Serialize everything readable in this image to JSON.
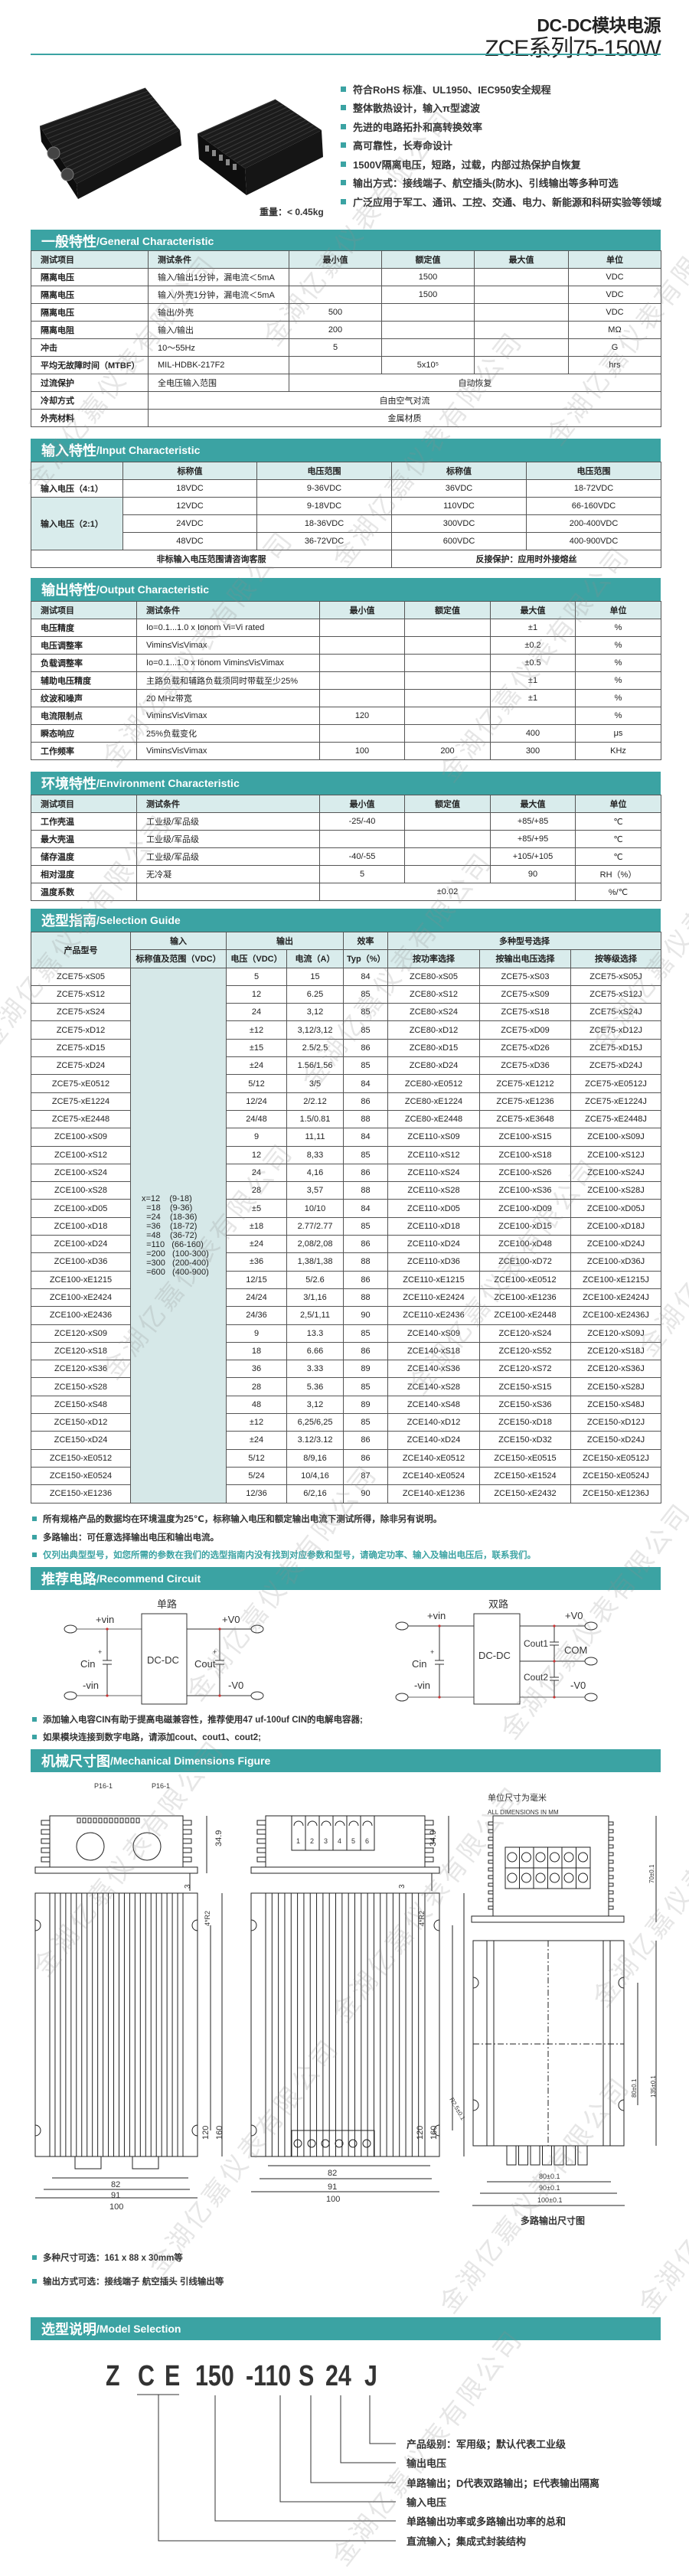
{
  "header": {
    "title_line1": "DC-DC模块电源",
    "title_line2": "ZCE系列75-150W"
  },
  "features": [
    "符合RoHS 标准、UL1950、IEC950安全规程",
    "整体散热设计，输入π型滤波",
    "先进的电路拓扑和高转换效率",
    "高可靠性，长寿命设计",
    "1500V隔离电压，短路，过载，内部过热保护自恢复",
    "输出方式：接线端子、航空插头(防水)、引线输出等多种可选",
    "广泛应用于军工、通讯、工控、交通、电力、新能源和科研实验等领域"
  ],
  "weight": "重量：< 0.45kg",
  "general": {
    "title_cn": "一般特性",
    "title_en": "/General Characteristic",
    "headers": [
      "测试项目",
      "测试条件",
      "最小值",
      "额定值",
      "最大值",
      "单位"
    ],
    "rows": [
      [
        "隔离电压",
        "输入/输出1分钟，漏电流＜5mA",
        "",
        "1500",
        "",
        "VDC"
      ],
      [
        "隔离电压",
        "输入/外壳1分钟，漏电流＜5mA",
        "",
        "1500",
        "",
        "VDC"
      ],
      [
        "隔离电压",
        "输出/外壳",
        "500",
        "",
        "",
        "VDC"
      ],
      [
        "隔离电阻",
        "输入/输出",
        "200",
        "",
        "",
        "MΩ"
      ],
      [
        "冲击",
        "10～55Hz",
        "5",
        "",
        "",
        "G"
      ],
      [
        "平均无故障时间（MTBF）",
        "MIL-HDBK-217F2",
        "",
        "5x10⁵",
        "",
        "hrs"
      ],
      [
        "过流保护",
        "全电压输入范围",
        "自动恢复"
      ],
      [
        "冷却方式",
        "自由空气对流"
      ],
      [
        "外壳材料",
        "金属材质"
      ]
    ]
  },
  "input": {
    "title_cn": "输入特性",
    "title_en": "/Input Characteristic",
    "headers": [
      "",
      "标称值",
      "电压范围",
      "标称值",
      "电压范围"
    ],
    "rows": [
      [
        "输入电压（4:1）",
        "18VDC",
        "9-36VDC",
        "36VDC",
        "18-72VDC"
      ],
      [
        "输入电压（2:1）",
        "12VDC",
        "9-18VDC",
        "110VDC",
        "66-160VDC"
      ],
      [
        "24VDC",
        "18-36VDC",
        "300VDC",
        "200-400VDC"
      ],
      [
        "48VDC",
        "36-72VDC",
        "600VDC",
        "400-900VDC"
      ],
      [
        "非标输入电压范围请咨询客服",
        "反接保护：应用时外接熔丝"
      ]
    ]
  },
  "output": {
    "title_cn": "输出特性",
    "title_en": "/Output Characteristic",
    "headers": [
      "测试项目",
      "测试条件",
      "最小值",
      "额定值",
      "最大值",
      "单位"
    ],
    "rows": [
      [
        "电压精度",
        "Io=0.1...1.0 x Ionom Vi=Vi rated",
        "",
        "",
        "±1",
        "%"
      ],
      [
        "电压调整率",
        "Vimin≤Vi≤Vimax",
        "",
        "",
        "±0.2",
        "%"
      ],
      [
        "负载调整率",
        "Io=0.1...1.0 x Ionom Vimin≤Vi≤Vimax",
        "",
        "",
        "±0.5",
        "%"
      ],
      [
        "辅助电压精度",
        "主路负载和辅路负载须同时带载至少25%",
        "",
        "",
        "±1",
        "%"
      ],
      [
        "纹波和噪声",
        "20 MHz带宽",
        "",
        "",
        "±1",
        "%"
      ],
      [
        "电流限制点",
        "Vimin≤Vi≤Vimax",
        "120",
        "",
        "",
        "%"
      ],
      [
        "瞬态响应",
        "25%负载变化",
        "",
        "",
        "400",
        "μs"
      ],
      [
        "工作频率",
        "Vimin≤Vi≤Vimax",
        "100",
        "200",
        "300",
        "KHz"
      ]
    ]
  },
  "environment": {
    "title_cn": "环境特性",
    "title_en": "/Environment Characteristic",
    "headers": [
      "测试项目",
      "测试条件",
      "最小值",
      "额定值",
      "最大值",
      "单位"
    ],
    "rows": [
      [
        "工作壳温",
        "工业级/军品级",
        "-25/-40",
        "",
        "+85/+85",
        "℃"
      ],
      [
        "最大壳温",
        "工业级/军品级",
        "",
        "",
        "+85/+95",
        "℃"
      ],
      [
        "储存温度",
        "工业级/军品级",
        "-40/-55",
        "",
        "+105/+105",
        "℃"
      ],
      [
        "相对湿度",
        "无冷凝",
        "5",
        "",
        "90",
        "RH（%）"
      ],
      [
        "温度系数",
        "",
        "±0.02",
        "%/℃"
      ]
    ]
  },
  "selection": {
    "title_cn": "选型指南",
    "title_en": "/Selection Guide",
    "header_top": [
      "产品型号",
      "输入",
      "输出",
      "效率",
      "多种型号选择"
    ],
    "header_sub": [
      "标称值及范围（VDC）",
      "电压（VDC）",
      "电流（A）",
      "Typ（%）",
      "按功率选择",
      "按输出电压选择",
      "按等级选择"
    ],
    "input_range": "x=12    (9-18)\n  =18    (9-36)\n  =24    (18-36)\n  =36    (18-72)\n  =48    (36-72)\n  =110   (66-160)\n  =200   (100-300)\n  =300   (200-400)\n  =600   (400-900)",
    "rows": [
      [
        "ZCE75-xS05",
        "5",
        "15",
        "84",
        "ZCE80-xS05",
        "ZCE75-xS03",
        "ZCE75-xS05J"
      ],
      [
        "ZCE75-xS12",
        "12",
        "6.25",
        "85",
        "ZCE80-xS12",
        "ZCE75-xS09",
        "ZCE75-xS12J"
      ],
      [
        "ZCE75-xS24",
        "24",
        "3,12",
        "85",
        "ZCE80-xS24",
        "ZCE75-xS18",
        "ZCE75-xS24J"
      ],
      [
        "ZCE75-xD12",
        "±12",
        "3,12/3,12",
        "85",
        "ZCE80-xD12",
        "ZCE75-xD09",
        "ZCE75-xD12J"
      ],
      [
        "ZCE75-xD15",
        "±15",
        "2.5/2.5",
        "86",
        "ZCE80-xD15",
        "ZCE75-xD26",
        "ZCE75-xD15J"
      ],
      [
        "ZCE75-xD24",
        "±24",
        "1.56/1.56",
        "85",
        "ZCE80-xD24",
        "ZCE75-xD36",
        "ZCE75-xD24J"
      ],
      [
        "ZCE75-xE0512",
        "5/12",
        "3/5",
        "84",
        "ZCE80-xE0512",
        "ZCE75-xE1212",
        "ZCE75-xE0512J"
      ],
      [
        "ZCE75-xE1224",
        "12/24",
        "2/2.12",
        "86",
        "ZCE80-xE1224",
        "ZCE75-xE1236",
        "ZCE75-xE1224J"
      ],
      [
        "ZCE75-xE2448",
        "24/48",
        "1.5/0.81",
        "88",
        "ZCE80-xE2448",
        "ZCE75-xE3648",
        "ZCE75-xE2448J"
      ],
      [
        "ZCE100-xS09",
        "9",
        "11,11",
        "84",
        "ZCE110-xS09",
        "ZCE100-xS15",
        "ZCE100-xS09J"
      ],
      [
        "ZCE100-xS12",
        "12",
        "8,33",
        "85",
        "ZCE110-xS12",
        "ZCE100-xS18",
        "ZCE100-xS12J"
      ],
      [
        "ZCE100-xS24",
        "24",
        "4,16",
        "86",
        "ZCE110-xS24",
        "ZCE100-xS26",
        "ZCE100-xS24J"
      ],
      [
        "ZCE100-xS28",
        "28",
        "3,57",
        "88",
        "ZCE110-xS28",
        "ZCE100-xS36",
        "ZCE100-xS28J"
      ],
      [
        "ZCE100-xD05",
        "±5",
        "10/10",
        "84",
        "ZCE110-xD05",
        "ZCE100-xD09",
        "ZCE100-xD05J"
      ],
      [
        "ZCE100-xD18",
        "±18",
        "2.77/2.77",
        "85",
        "ZCE110-xD18",
        "ZCE100-xD15",
        "ZCE100-xD18J"
      ],
      [
        "ZCE100-xD24",
        "±24",
        "2,08/2,08",
        "86",
        "ZCE110-xD24",
        "ZCE100-xD48",
        "ZCE100-xD24J"
      ],
      [
        "ZCE100-xD36",
        "±36",
        "1,38/1,38",
        "88",
        "ZCE110-xD36",
        "ZCE100-xD72",
        "ZCE100-xD36J"
      ],
      [
        "ZCE100-xE1215",
        "12/15",
        "5/2.6",
        "86",
        "ZCE110-xE1215",
        "ZCE100-xE0512",
        "ZCE100-xE1215J"
      ],
      [
        "ZCE100-xE2424",
        "24/24",
        "3/1,16",
        "88",
        "ZCE110-xE2424",
        "ZCE100-xE1236",
        "ZCE100-xE2424J"
      ],
      [
        "ZCE100-xE2436",
        "24/36",
        "2,5/1,11",
        "90",
        "ZCE110-xE2436",
        "ZCE100-xE2448",
        "ZCE100-xE2436J"
      ],
      [
        "ZCE120-xS09",
        "9",
        "13.3",
        "85",
        "ZCE140-xS09",
        "ZCE120-xS24",
        "ZCE120-xS09J"
      ],
      [
        "ZCE120-xS18",
        "18",
        "6.66",
        "86",
        "ZCE140-xS18",
        "ZCE120-xS52",
        "ZCE120-xS18J"
      ],
      [
        "ZCE120-xS36",
        "36",
        "3.33",
        "89",
        "ZCE140-xS36",
        "ZCE120-xS72",
        "ZCE120-xS36J"
      ],
      [
        "ZCE150-xS28",
        "28",
        "5.36",
        "85",
        "ZCE140-xS28",
        "ZCE150-xS15",
        "ZCE150-xS28J"
      ],
      [
        "ZCE150-xS48",
        "48",
        "3,12",
        "89",
        "ZCE140-xS48",
        "ZCE150-xS36",
        "ZCE150-xS48J"
      ],
      [
        "ZCE150-xD12",
        "±12",
        "6,25/6,25",
        "85",
        "ZCE140-xD12",
        "ZCE150-xD18",
        "ZCE150-xD12J"
      ],
      [
        "ZCE150-xD24",
        "±24",
        "3.12/3.12",
        "86",
        "ZCE140-xD24",
        "ZCE150-xD32",
        "ZCE150-xD24J"
      ],
      [
        "ZCE150-xE0512",
        "5/12",
        "8/9,16",
        "86",
        "ZCE140-xE0512",
        "ZCE150-xE0515",
        "ZCE150-xE0512J"
      ],
      [
        "ZCE150-xE0524",
        "5/24",
        "10/4,16",
        "87",
        "ZCE140-xE0524",
        "ZCE150-xE1524",
        "ZCE150-xE0524J"
      ],
      [
        "ZCE150-xE1236",
        "12/36",
        "6/2,16",
        "90",
        "ZCE140-xE1236",
        "ZCE150-xE2432",
        "ZCE150-xE1236J"
      ]
    ]
  },
  "selection_notes": [
    "所有规格产品的数据均在环境温度为25℃，标称输入电压和额定输出电流下测试所得，除非另有说明。",
    "多路输出：可任意选择输出电压和输出电流。",
    "仅列出典型型号，如您所需的参数在我们的选型指南内没有找到对应参数和型号，请确定功率、输入及输出电压后，联系我们。"
  ],
  "circuit": {
    "title_cn": "推荐电路",
    "title_en": "/Recommend Circuit",
    "single": {
      "label": "单路",
      "vin_pos": "+vin",
      "vin_neg": "-vin",
      "cin": "Cin",
      "module": "DC-DC",
      "cout": "Cout",
      "vo_pos": "+V0",
      "vo_neg": "-V0",
      "plus": "+"
    },
    "dual": {
      "label": "双路",
      "vin_pos": "+vin",
      "vin_neg": "-vin",
      "cin": "Cin",
      "module": "DC-DC",
      "cout1": "Cout1",
      "cout2": "Cout2",
      "com": "COM",
      "vo_pos": "+V0",
      "vo_neg": "-V0",
      "plus": "+"
    },
    "notes": [
      "添加输入电容CIN有助于提高电磁兼容性，推荐使用47 uf-100uf CIN的电解电容器;",
      "如果模块连接到数字电路，请添加cout、cout1、cout2;"
    ]
  },
  "mechanical": {
    "title_cn": "机械尺寸图",
    "title_en": "/Mechanical Dimensions Figure",
    "connector_label": "P16-1",
    "terminal_numbers": [
      "1",
      "2",
      "3",
      "4",
      "5",
      "6"
    ],
    "height": "34.9",
    "base": "3",
    "radius": "4*R2",
    "hole_pitch": "120",
    "length": "160",
    "w1": "82",
    "w2": "91",
    "w3": "100",
    "unit_cn": "单位尺寸为毫米",
    "unit_en": "ALL DIMENSIONS IN MM",
    "multi_height": "70±0.1",
    "multi_pitch": "80±0.1",
    "multi_length": "135±0.1",
    "multi_radius": "R2.5±0.1",
    "multi_w1": "80±0.1",
    "multi_w2": "90±0.1",
    "multi_w3": "100±0.1",
    "multi_caption": "多路输出尺寸图",
    "notes": [
      "多种尺寸可选：161 x 88 x 30mm等",
      "输出方式可选：接线端子 航空插头 引线输出等"
    ]
  },
  "model": {
    "title_cn": "选型说明",
    "title_en": "/Model Selection",
    "code_parts": [
      "Z",
      "C",
      "E",
      "150",
      "-110",
      "S",
      "24",
      "J"
    ],
    "descriptions": [
      "产品级别：军用级；默认代表工业级",
      "输出电压",
      "单路输出；D代表双路输出；E代表输出隔离",
      "输入电压",
      "单路输出功率或多路输出功率的总和",
      "直流输入；集成式封装结构"
    ]
  },
  "watermark": "金湖亿嘉仪表有限公司",
  "colors": {
    "accent": "#3ba3a3",
    "table_header": "#d9ecec",
    "text": "#222222"
  }
}
